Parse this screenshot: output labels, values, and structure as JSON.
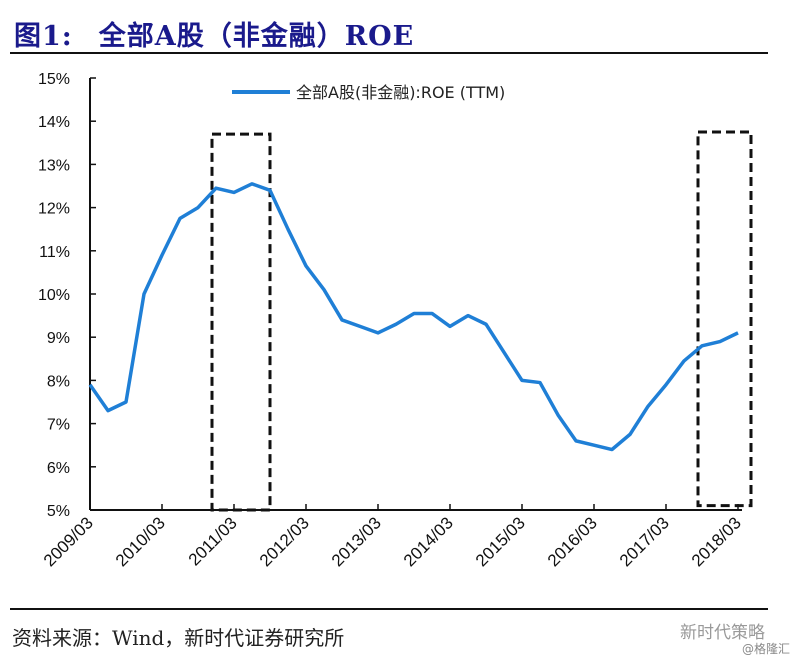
{
  "header": {
    "figure_label": "图1:",
    "title": "全部A股（非金融）ROE"
  },
  "footer": {
    "source": "资料来源：Wind，新时代证券研究所",
    "watermark": "新时代策略",
    "credit": "@格隆汇"
  },
  "chart_data": {
    "type": "line",
    "title": "全部A股（非金融）ROE",
    "xlabel": "",
    "ylabel": "",
    "ylim": [
      5,
      15
    ],
    "y_ticks": [
      "5%",
      "6%",
      "7%",
      "8%",
      "9%",
      "10%",
      "11%",
      "12%",
      "13%",
      "14%",
      "15%"
    ],
    "x_ticks": [
      "2009/03",
      "2010/03",
      "2011/03",
      "2012/03",
      "2013/03",
      "2014/03",
      "2015/03",
      "2016/03",
      "2017/03",
      "2018/03"
    ],
    "legend_position": "top",
    "grid": false,
    "series": [
      {
        "name": "全部A股(非金融):ROE (TTM)",
        "color": "#1f7fd6",
        "x": [
          "2009/03",
          "2009/06",
          "2009/09",
          "2009/12",
          "2010/03",
          "2010/06",
          "2010/09",
          "2010/12",
          "2011/03",
          "2011/06",
          "2011/09",
          "2011/12",
          "2012/03",
          "2012/06",
          "2012/09",
          "2012/12",
          "2013/03",
          "2013/06",
          "2013/09",
          "2013/12",
          "2014/03",
          "2014/06",
          "2014/09",
          "2014/12",
          "2015/03",
          "2015/06",
          "2015/09",
          "2015/12",
          "2016/03",
          "2016/06",
          "2016/09",
          "2016/12",
          "2017/03",
          "2017/06",
          "2017/09",
          "2017/12",
          "2018/03"
        ],
        "values": [
          7.9,
          7.3,
          7.5,
          10.0,
          10.9,
          11.75,
          12.0,
          12.45,
          12.35,
          12.55,
          12.4,
          11.5,
          10.65,
          10.1,
          9.4,
          9.25,
          9.1,
          9.3,
          9.55,
          9.55,
          9.25,
          9.5,
          9.3,
          8.65,
          8.0,
          7.95,
          7.2,
          6.6,
          6.5,
          6.4,
          6.75,
          7.4,
          7.9,
          8.45,
          8.8,
          8.9,
          9.1
        ]
      }
    ],
    "annotations": [
      {
        "type": "dashed-box",
        "x_range": [
          "2010/12",
          "2011/09"
        ],
        "y_range": [
          5,
          13.7
        ]
      },
      {
        "type": "dashed-box",
        "x_range": [
          "2017/09",
          "2018/03"
        ],
        "y_range": [
          5.1,
          13.75
        ]
      }
    ]
  }
}
